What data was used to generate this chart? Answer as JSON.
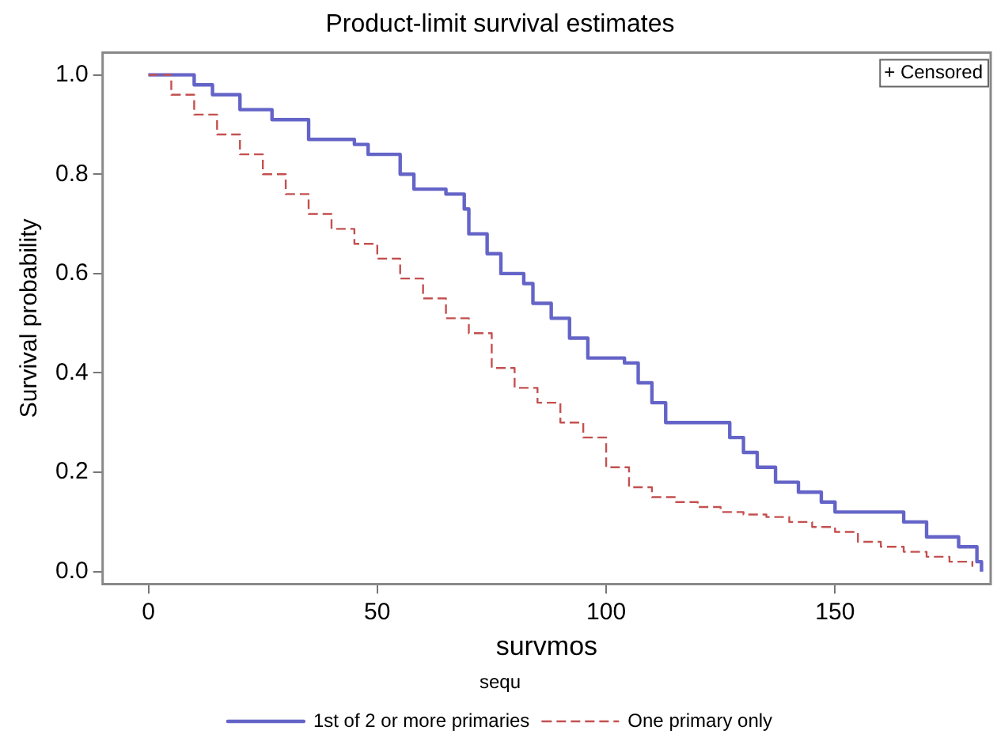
{
  "chart_data": {
    "type": "step",
    "title": "Product-limit survival estimates",
    "xlabel": "survmos",
    "ylabel": "Survival probability",
    "legend_title": "sequ",
    "legend": "bottom",
    "grid": false,
    "annotations": [
      "+ Censored"
    ],
    "xlim": [
      -10,
      184
    ],
    "xticks": [
      0,
      50,
      100,
      150
    ],
    "ylim": [
      -0.025,
      1.045
    ],
    "yticks": [
      {
        "value": 0,
        "label": "0.0"
      },
      {
        "value": 0.2,
        "label": "0.2"
      },
      {
        "value": 0.4,
        "label": "0.4"
      },
      {
        "value": 0.6,
        "label": "0.6"
      },
      {
        "value": 0.8,
        "label": "0.8"
      },
      {
        "value": 1,
        "label": "1.0"
      }
    ],
    "series": [
      {
        "name": "1st of 2 or more primaries",
        "color": "#6464c8",
        "line_style": "solid",
        "x": [
          0,
          8,
          10,
          14,
          20,
          27,
          35,
          45,
          48,
          55,
          58,
          65,
          69,
          70,
          74,
          77,
          82,
          84,
          88,
          92,
          96,
          104,
          107,
          110,
          113,
          125,
          127,
          130,
          133,
          137,
          142,
          147,
          150,
          163,
          165,
          170,
          177,
          181,
          182
        ],
        "values": [
          1,
          1,
          0.98,
          0.96,
          0.93,
          0.91,
          0.87,
          0.86,
          0.84,
          0.8,
          0.77,
          0.76,
          0.73,
          0.68,
          0.64,
          0.6,
          0.58,
          0.54,
          0.51,
          0.47,
          0.43,
          0.42,
          0.38,
          0.34,
          0.3,
          0.3,
          0.27,
          0.24,
          0.21,
          0.18,
          0.16,
          0.14,
          0.12,
          0.12,
          0.1,
          0.07,
          0.05,
          0.02,
          0
        ]
      },
      {
        "name": "One primary only",
        "color": "#c45050",
        "line_style": "dashed",
        "x": [
          0,
          5,
          10,
          15,
          20,
          25,
          30,
          35,
          40,
          45,
          50,
          55,
          60,
          65,
          70,
          75,
          80,
          85,
          90,
          95,
          100,
          105,
          110,
          115,
          120,
          125,
          130,
          135,
          140,
          145,
          150,
          155,
          160,
          165,
          170,
          175,
          180
        ],
        "values": [
          1,
          0.96,
          0.92,
          0.88,
          0.84,
          0.8,
          0.76,
          0.72,
          0.69,
          0.66,
          0.63,
          0.59,
          0.55,
          0.51,
          0.48,
          0.41,
          0.37,
          0.34,
          0.3,
          0.27,
          0.21,
          0.17,
          0.15,
          0.14,
          0.13,
          0.12,
          0.115,
          0.11,
          0.1,
          0.09,
          0.08,
          0.06,
          0.05,
          0.04,
          0.03,
          0.02,
          0.01
        ]
      }
    ]
  }
}
